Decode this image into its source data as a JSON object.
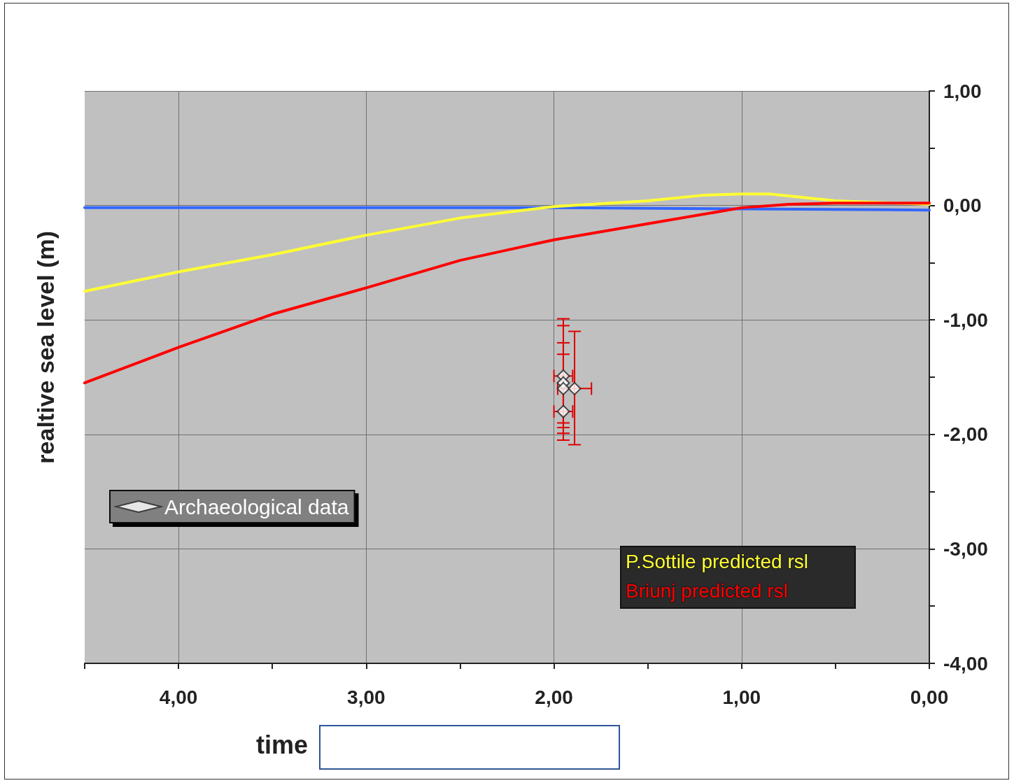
{
  "chart_data": {
    "type": "line",
    "xlabel": "time",
    "ylabel": "realtive sea level (m)",
    "xlim": [
      4.5,
      0
    ],
    "ylim": [
      -4,
      1
    ],
    "xticks": [
      {
        "value": 4.5,
        "label": null
      },
      {
        "value": 4,
        "label": "4,00"
      },
      {
        "value": 3.5,
        "label": null
      },
      {
        "value": 3,
        "label": "3,00"
      },
      {
        "value": 2.5,
        "label": null
      },
      {
        "value": 2,
        "label": "2,00"
      },
      {
        "value": 1.5,
        "label": null
      },
      {
        "value": 1,
        "label": "1,00"
      },
      {
        "value": 0.5,
        "label": null
      },
      {
        "value": 0,
        "label": "0,00"
      }
    ],
    "yticks": [
      {
        "value": 1,
        "label": "1,00"
      },
      {
        "value": 0.5,
        "label": null
      },
      {
        "value": 0,
        "label": "0,00"
      },
      {
        "value": -0.5,
        "label": null
      },
      {
        "value": -1,
        "label": "-1,00"
      },
      {
        "value": -1.5,
        "label": null
      },
      {
        "value": -2,
        "label": "-2,00"
      },
      {
        "value": -2.5,
        "label": null
      },
      {
        "value": -3,
        "label": "-3,00"
      },
      {
        "value": -3.5,
        "label": null
      },
      {
        "value": -4,
        "label": "-4,00"
      }
    ],
    "grid": true,
    "legend": "bottom left",
    "marker": "none",
    "line_style": "solid",
    "series": [
      {
        "color": "#3366ff",
        "x": [
          4.5,
          2,
          0
        ],
        "values": [
          -0.02,
          -0.02,
          -0.04
        ]
      },
      {
        "name": "P.Sottile predicted rsl",
        "color": "#ffff33",
        "x": [
          4.5,
          4,
          3.5,
          3,
          2.5,
          2,
          1.5,
          1.2,
          1,
          0.85,
          0.5,
          0
        ],
        "values": [
          -0.75,
          -0.58,
          -0.43,
          -0.26,
          -0.11,
          -0.01,
          0.04,
          0.09,
          0.1,
          0.1,
          0.04,
          0.01
        ]
      },
      {
        "name": "Briunj predicted rsl",
        "color": "#ff0000",
        "x": [
          4.5,
          4,
          3.5,
          3,
          2.5,
          2,
          1.5,
          1,
          0.75,
          0.5,
          0
        ],
        "values": [
          -1.55,
          -1.24,
          -0.95,
          -0.72,
          -0.48,
          -0.3,
          -0.16,
          -0.02,
          0.01,
          0.02,
          0.02
        ]
      },
      {
        "type": "scatter",
        "name": "Archaeological data",
        "color": "#ffffff",
        "marker": "diamond",
        "x": [
          1.95,
          1.95,
          1.95,
          1.89,
          1.95
        ],
        "values": [
          -1.49,
          -1.55,
          -1.6,
          -1.6,
          -1.8
        ],
        "errors": [
          [
            -1.99,
            -0.99
          ],
          [
            -2.05,
            -1.05
          ],
          [
            -1.9,
            -1.3
          ],
          [
            -2.09,
            -1.1
          ],
          [
            -1.94,
            -1.2
          ]
        ],
        "xerrors": [
          0.05,
          null,
          null,
          [
            1.8,
            1.98
          ],
          0.05
        ]
      }
    ]
  }
}
